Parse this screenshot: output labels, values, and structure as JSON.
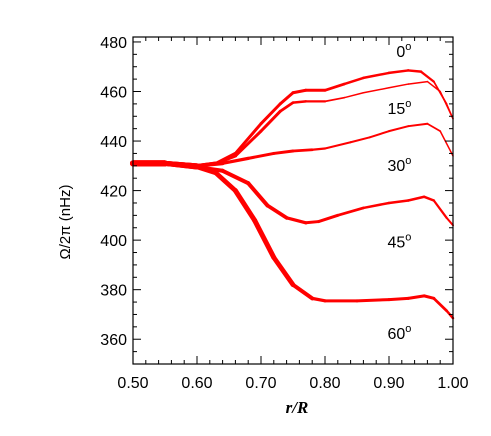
{
  "chart_data": {
    "type": "line",
    "xlabel": "r/R",
    "ylabel": "Ω/2π (nHz)",
    "xlim": [
      0.5,
      1.0
    ],
    "ylim": [
      350,
      482
    ],
    "xticks": [
      0.5,
      0.6,
      0.7,
      0.8,
      0.9,
      1.0
    ],
    "xtick_labels": [
      "0.50",
      "0.60",
      "0.70",
      "0.80",
      "0.90",
      "1.00"
    ],
    "yticks": [
      360,
      380,
      400,
      420,
      440,
      460,
      480
    ],
    "ytick_labels": [
      "360",
      "380",
      "400",
      "420",
      "440",
      "460",
      "480"
    ],
    "grid": false,
    "line_color": "#ff0000",
    "series": [
      {
        "name": "0°",
        "x": [
          0.5,
          0.55,
          0.6,
          0.63,
          0.66,
          0.7,
          0.73,
          0.75,
          0.77,
          0.8,
          0.83,
          0.86,
          0.9,
          0.93,
          0.95,
          0.97,
          0.99,
          1.0
        ],
        "y": [
          431,
          431,
          430,
          431,
          435,
          447,
          455,
          459.5,
          460.5,
          460.5,
          463,
          465.5,
          467.5,
          468.5,
          468,
          464,
          455,
          449
        ],
        "width": [
          6,
          6,
          4,
          3.5,
          3,
          3,
          3,
          3,
          3,
          3,
          2.5,
          2.5,
          2.5,
          2.5,
          2.5,
          2,
          1.5,
          1.5
        ]
      },
      {
        "name": "15°",
        "x": [
          0.5,
          0.55,
          0.6,
          0.63,
          0.66,
          0.7,
          0.73,
          0.75,
          0.77,
          0.8,
          0.83,
          0.86,
          0.9,
          0.93,
          0.96,
          0.98,
          1.0
        ],
        "y": [
          431,
          431,
          430,
          431,
          434,
          444,
          452,
          455.5,
          456,
          456,
          457.5,
          459.5,
          461.5,
          463,
          464,
          460,
          449
        ],
        "width": [
          6,
          6,
          4,
          3.5,
          3,
          3,
          3,
          2.5,
          2.5,
          2,
          1.5,
          1.5,
          1.5,
          1.5,
          1.5,
          1.5,
          1.5
        ]
      },
      {
        "name": "30°",
        "x": [
          0.5,
          0.55,
          0.6,
          0.64,
          0.68,
          0.72,
          0.75,
          0.78,
          0.8,
          0.84,
          0.87,
          0.9,
          0.93,
          0.96,
          0.98,
          1.0
        ],
        "y": [
          431,
          431,
          430,
          431,
          433,
          435,
          436,
          436.5,
          437,
          439.5,
          441.5,
          444,
          446,
          447,
          444,
          434
        ],
        "width": [
          6,
          6,
          4,
          3.5,
          3,
          3,
          3,
          2.5,
          2,
          2,
          2,
          2,
          2,
          2,
          1.5,
          1.5
        ]
      },
      {
        "name": "45°",
        "x": [
          0.5,
          0.55,
          0.6,
          0.64,
          0.68,
          0.71,
          0.74,
          0.77,
          0.79,
          0.82,
          0.86,
          0.9,
          0.93,
          0.955,
          0.97,
          0.99,
          1.0
        ],
        "y": [
          431,
          431,
          429.5,
          428,
          423,
          414,
          409,
          407,
          407.5,
          410,
          413,
          415,
          416,
          417.5,
          416,
          409,
          406
        ],
        "width": [
          6,
          6,
          4,
          4,
          4,
          4,
          3.5,
          3,
          3,
          3,
          2.5,
          2.5,
          2.5,
          2.5,
          2.5,
          2,
          2
        ]
      },
      {
        "name": "60°",
        "x": [
          0.5,
          0.55,
          0.6,
          0.63,
          0.66,
          0.69,
          0.72,
          0.75,
          0.78,
          0.8,
          0.85,
          0.9,
          0.93,
          0.955,
          0.97,
          0.99,
          1.0
        ],
        "y": [
          431,
          431,
          429.5,
          427,
          420,
          408,
          393,
          382,
          376.5,
          375.5,
          375.5,
          376,
          376.5,
          377.5,
          376.5,
          371.5,
          368.5
        ],
        "width": [
          6,
          6,
          4,
          4.5,
          5,
          5,
          5,
          4.5,
          3.5,
          3,
          3,
          3,
          3,
          3,
          3,
          2.5,
          2.5
        ]
      }
    ],
    "annotations": [
      {
        "text": "0",
        "sup": "o",
        "x": 0.935,
        "y": 474
      },
      {
        "text": "15",
        "sup": "o",
        "x": 0.935,
        "y": 451
      },
      {
        "text": "30",
        "sup": "o",
        "x": 0.935,
        "y": 428
      },
      {
        "text": "45",
        "sup": "o",
        "x": 0.935,
        "y": 397
      },
      {
        "text": "60",
        "sup": "o",
        "x": 0.935,
        "y": 360
      }
    ]
  }
}
